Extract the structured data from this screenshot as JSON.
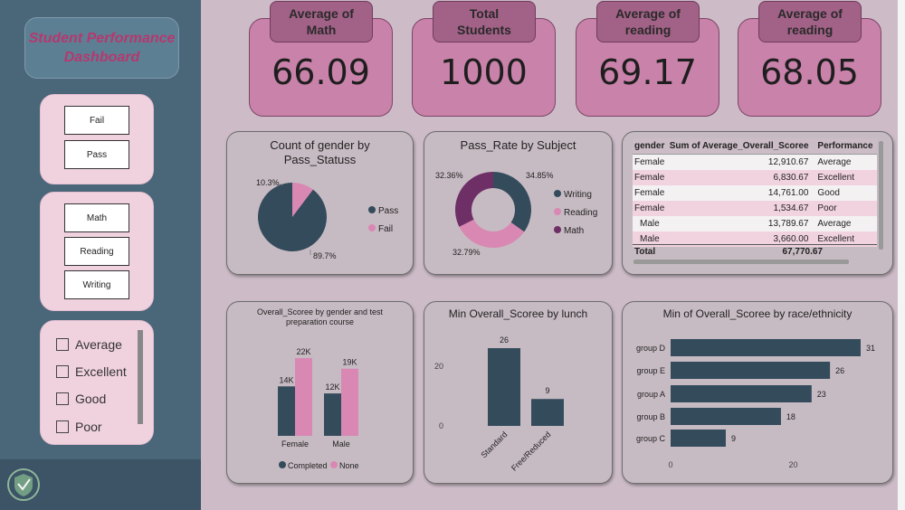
{
  "dashboard_title": "Student Performance\nDashboard",
  "slicers": {
    "pass_status": [
      "Fail",
      "Pass"
    ],
    "subjects": [
      "Math",
      "Reading",
      "Writing"
    ],
    "performance": [
      "Average",
      "Excellent",
      "Good",
      "Poor"
    ]
  },
  "kpis": [
    {
      "label": "Average of\nMath",
      "value": "66.09"
    },
    {
      "label": "Total\nStudents",
      "value": "1000"
    },
    {
      "label": "Average of\nreading",
      "value": "69.17"
    },
    {
      "label": "Average of\nreading",
      "value": "68.05"
    }
  ],
  "colors": {
    "navy": "#344b5c",
    "pink": "#d888b2",
    "purple": "#6e2f67"
  },
  "pie_chart": {
    "title": "Count of gender by Pass_Statuss",
    "legend": [
      "Pass",
      "Fail"
    ],
    "chart_data": {
      "type": "pie",
      "labels": [
        "Pass",
        "Fail"
      ],
      "values": [
        89.7,
        10.3
      ],
      "value_labels": [
        "89.7%",
        "10.3%"
      ]
    }
  },
  "donut_chart": {
    "title": "Pass_Rate by Subject",
    "legend": [
      "Writing",
      "Reading",
      "Math"
    ],
    "chart_data": {
      "type": "pie",
      "labels": [
        "Writing",
        "Reading",
        "Math"
      ],
      "values": [
        34.85,
        32.79,
        32.36
      ],
      "value_labels": [
        "34.85%",
        "32.79%",
        "32.36%"
      ]
    }
  },
  "table": {
    "headers": [
      "gender",
      "Sum of Average_Overall_Scoree",
      "Performance"
    ],
    "rows": [
      [
        "Female",
        "12,910.67",
        "Average"
      ],
      [
        "Female",
        "6,830.67",
        "Excellent"
      ],
      [
        "Female",
        "14,761.00",
        "Good"
      ],
      [
        "Female",
        "1,534.67",
        "Poor"
      ],
      [
        "Male",
        "13,789.67",
        "Average"
      ],
      [
        "Male",
        "3,660.00",
        "Excellent"
      ]
    ],
    "total_label": "Total",
    "total_value": "67,770.67"
  },
  "grouped_bar": {
    "title": "Overall_Scoree by gender and test preparation course",
    "legend": [
      "Completed",
      "None"
    ],
    "chart_data": {
      "type": "bar",
      "categories": [
        "Female",
        "Male"
      ],
      "series": [
        {
          "name": "Completed",
          "values": [
            14000,
            12000
          ],
          "labels": [
            "14K",
            "12K"
          ]
        },
        {
          "name": "None",
          "values": [
            22000,
            19000
          ],
          "labels": [
            "22K",
            "19K"
          ]
        }
      ]
    }
  },
  "lunch_bar": {
    "title": "Min Overall_Scoree by lunch",
    "chart_data": {
      "type": "bar",
      "categories": [
        "Standard",
        "Free/Reduced"
      ],
      "values": [
        26,
        9
      ],
      "yticks": [
        "0",
        "20"
      ],
      "ylim": [
        0,
        30
      ]
    }
  },
  "race_bar": {
    "title": "Min of Overall_Scoree by race/ethnicity",
    "chart_data": {
      "type": "bar",
      "orientation": "horizontal",
      "categories": [
        "group D",
        "group E",
        "group A",
        "group B",
        "group C"
      ],
      "values": [
        31,
        26,
        23,
        18,
        9
      ],
      "xticks": [
        "0",
        "20"
      ],
      "xlim": [
        0,
        31
      ]
    }
  }
}
